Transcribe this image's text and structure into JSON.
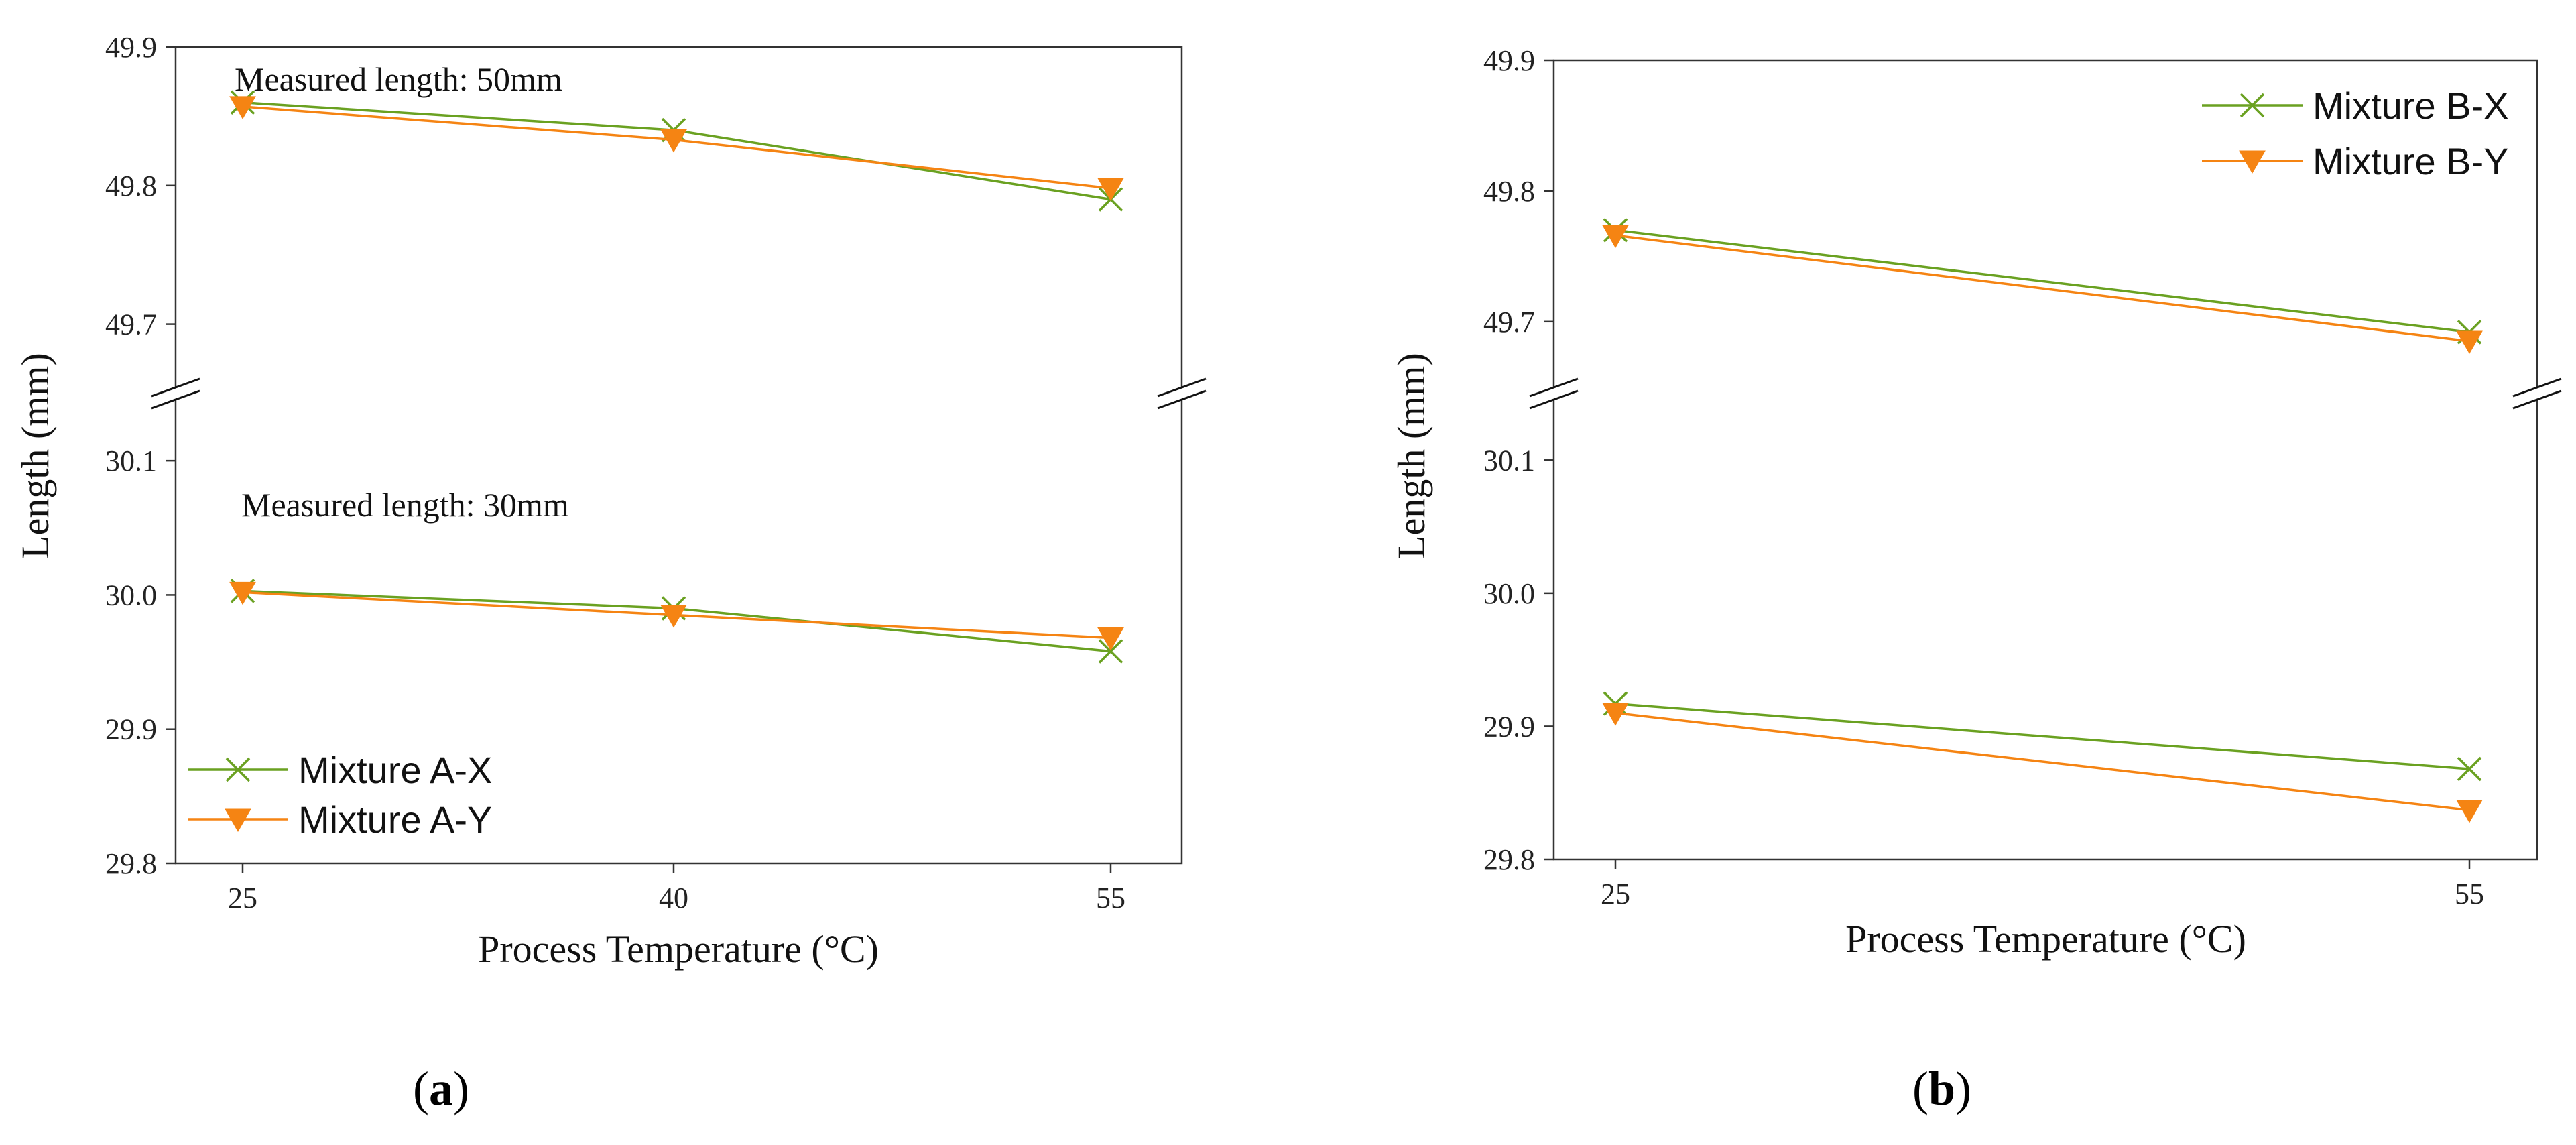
{
  "chart_data": [
    {
      "type": "line",
      "panel": "a",
      "xlabel": "Process Temperature (°C)",
      "ylabel": "Length (mm)",
      "x": [
        25,
        40,
        55
      ],
      "x_ticks": [
        "25",
        "40",
        "55"
      ],
      "broken_y_axis": true,
      "y_segments": [
        {
          "name": "upper",
          "ylim": [
            49.65,
            49.9
          ],
          "ticks": [
            "49.9",
            "49.8",
            "49.7"
          ],
          "tick_values": [
            49.9,
            49.8,
            49.7
          ]
        },
        {
          "name": "lower",
          "ylim": [
            29.8,
            30.15
          ],
          "ticks": [
            "30.1",
            "30.0",
            "29.9",
            "29.8"
          ],
          "tick_values": [
            30.1,
            30.0,
            29.9,
            29.8
          ]
        }
      ],
      "series": [
        {
          "name": "Mixture A-X",
          "color": "#6aa121",
          "marker": "x",
          "segment": "upper",
          "values": [
            49.86,
            49.84,
            49.79
          ]
        },
        {
          "name": "Mixture A-Y",
          "color": "#f58413",
          "marker": "triangle-down",
          "segment": "upper",
          "values": [
            49.857,
            49.833,
            49.798
          ]
        },
        {
          "name": "Mixture A-X",
          "color": "#6aa121",
          "marker": "x",
          "segment": "lower",
          "values": [
            30.003,
            29.99,
            29.958
          ]
        },
        {
          "name": "Mixture A-Y",
          "color": "#f58413",
          "marker": "triangle-down",
          "segment": "lower",
          "values": [
            30.002,
            29.985,
            29.968
          ]
        }
      ],
      "annotations": [
        "Measured length: 50mm",
        "Measured length: 30mm"
      ],
      "legend": {
        "position": "bottom-left",
        "entries": [
          "Mixture A-X",
          "Mixture A-Y"
        ]
      },
      "label_prefix": "(",
      "label_letter": "a",
      "label_suffix": ")"
    },
    {
      "type": "line",
      "panel": "b",
      "xlabel": "Process Temperature (°C)",
      "ylabel": "Length (mm)",
      "x": [
        25,
        55
      ],
      "x_ticks": [
        "25",
        "55"
      ],
      "broken_y_axis": true,
      "y_segments": [
        {
          "name": "upper",
          "ylim": [
            49.645,
            49.9
          ],
          "ticks": [
            "49.9",
            "49.8",
            "49.7"
          ],
          "tick_values": [
            49.9,
            49.8,
            49.7
          ]
        },
        {
          "name": "lower",
          "ylim": [
            29.8,
            30.15
          ],
          "ticks": [
            "30.1",
            "30.0",
            "29.9",
            "29.8"
          ],
          "tick_values": [
            30.1,
            30.0,
            29.9,
            29.8
          ]
        }
      ],
      "series": [
        {
          "name": "Mixture B-X",
          "color": "#6aa121",
          "marker": "x",
          "segment": "upper",
          "values": [
            49.77,
            49.692
          ]
        },
        {
          "name": "Mixture B-Y",
          "color": "#f58413",
          "marker": "triangle-down",
          "segment": "upper",
          "values": [
            49.766,
            49.685
          ]
        },
        {
          "name": "Mixture B-X",
          "color": "#6aa121",
          "marker": "x",
          "segment": "lower",
          "values": [
            29.917,
            29.868
          ]
        },
        {
          "name": "Mixture B-Y",
          "color": "#f58413",
          "marker": "triangle-down",
          "segment": "lower",
          "values": [
            29.91,
            29.837
          ]
        }
      ],
      "annotations": [],
      "legend": {
        "position": "top-right",
        "entries": [
          "Mixture B-X",
          "Mixture B-Y"
        ]
      },
      "label_prefix": "(",
      "label_letter": "b",
      "label_suffix": ")"
    }
  ]
}
